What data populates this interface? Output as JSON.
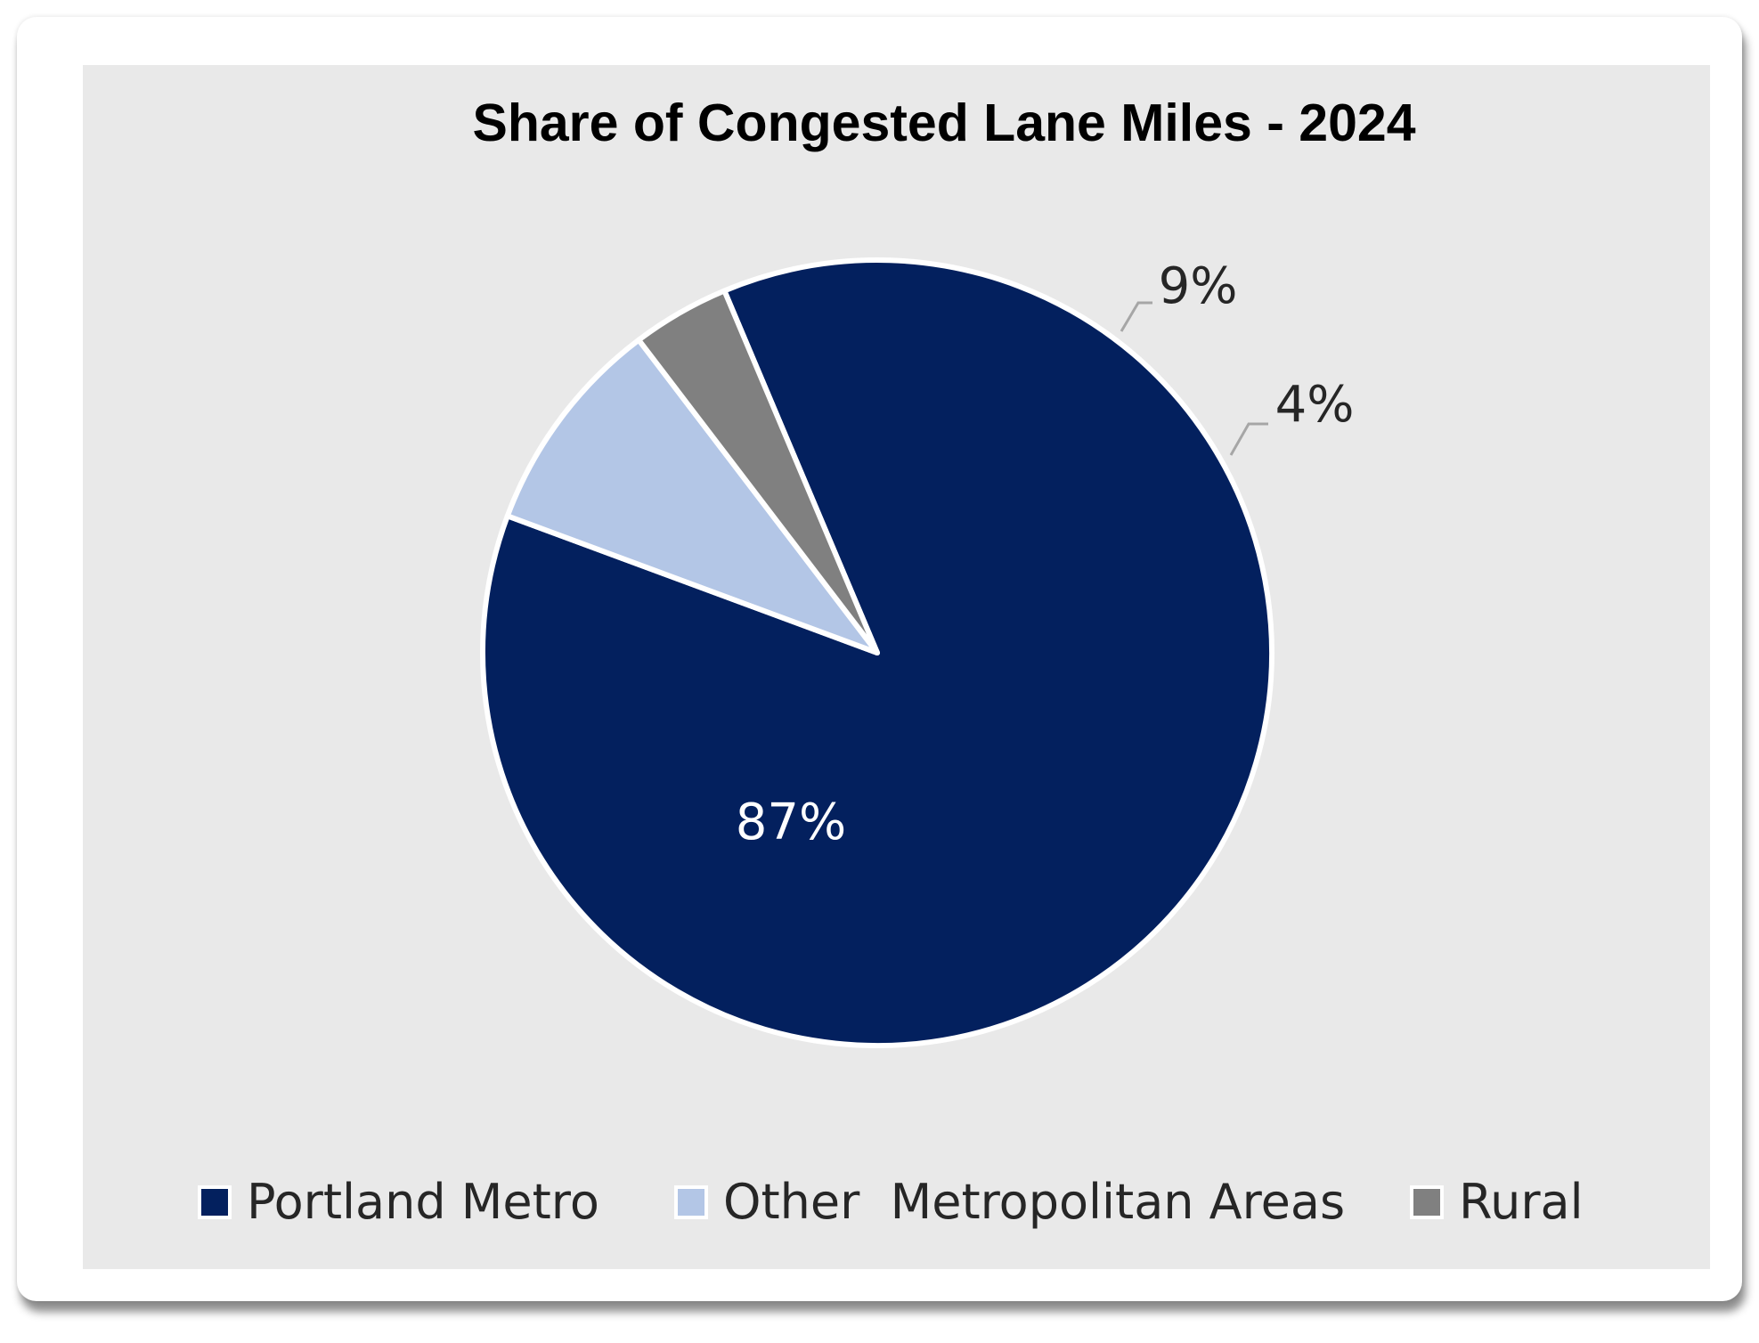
{
  "chart_data": {
    "type": "pie",
    "title": "Share of Congested Lane Miles - 2024",
    "slices": [
      {
        "label": "Portland Metro",
        "value": 87,
        "display": "87%",
        "color": "#03205e",
        "label_color": "#ffffff"
      },
      {
        "label": "Other  Metropolitan Areas",
        "value": 9,
        "display": "9%",
        "color": "#b3c6e6",
        "label_color": "#262626"
      },
      {
        "label": "Rural",
        "value": 4,
        "display": "4%",
        "color": "#808080",
        "label_color": "#262626"
      }
    ],
    "legend_position": "bottom",
    "background_color": "#e9e9e9"
  }
}
